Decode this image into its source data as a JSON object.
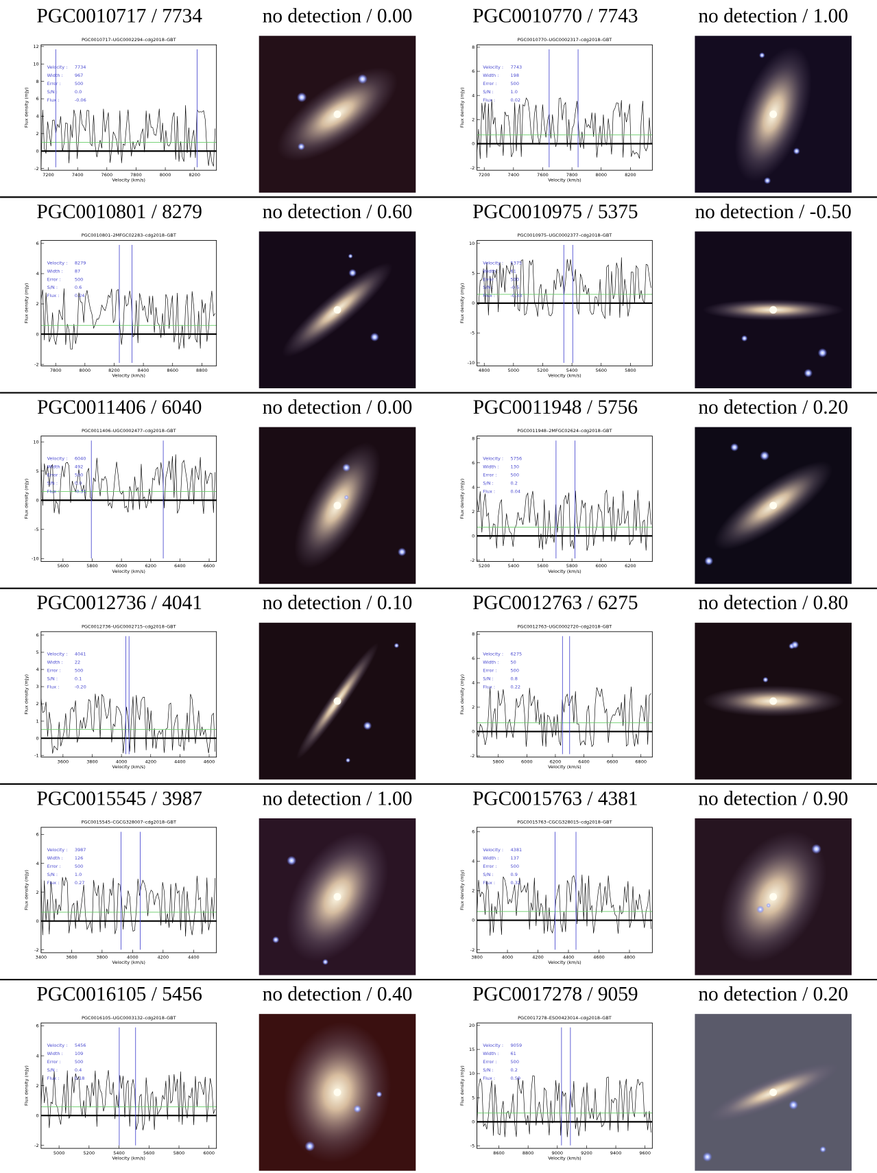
{
  "axis_labels": {
    "x": "Velocity (km/s)",
    "y": "Flux density (mJy)"
  },
  "stat_labels": [
    "Velocity :",
    "Width :",
    "Error :",
    "S/N :",
    "Flux :"
  ],
  "panels": [
    {
      "header": "PGC0010717 / 7734",
      "detection": "no detection / 0.00",
      "plot": {
        "title": "PGC0010717–UGC0002294–cdg2018–GBT",
        "xlim": [
          7150,
          8350
        ],
        "ylim": [
          -2.2,
          12.2
        ],
        "xticks": [
          7200,
          7400,
          7600,
          7800,
          8000,
          8200
        ],
        "yticks": [
          -2,
          0,
          2,
          4,
          6,
          8,
          10,
          12
        ],
        "stats": {
          "velocity": 7734,
          "width": 967,
          "error": 500,
          "sn": "0.0",
          "flux": "-0.06"
        }
      }
    },
    {
      "header": "PGC0010770 / 7743",
      "detection": "no detection / 1.00",
      "plot": {
        "title": "PGC0010770–UGC0002317–cdg2018–GBT",
        "xlim": [
          7150,
          8350
        ],
        "ylim": [
          -2.2,
          8.2
        ],
        "xticks": [
          7200,
          7400,
          7600,
          7800,
          8000,
          8200
        ],
        "yticks": [
          -2,
          0,
          2,
          4,
          6,
          8
        ],
        "stats": {
          "velocity": 7743,
          "width": 198,
          "error": 500,
          "sn": "1.0",
          "flux": "0.02"
        }
      }
    },
    {
      "header": "PGC0010801 / 8279",
      "detection": "no detection / 0.60",
      "plot": {
        "title": "PGC0010801–2MFGC02283–cdg2018–GBT",
        "xlim": [
          7700,
          8900
        ],
        "ylim": [
          -2.1,
          6.2
        ],
        "xticks": [
          7800,
          8000,
          8200,
          8400,
          8600,
          8800
        ],
        "yticks": [
          -2,
          0,
          2,
          4,
          6
        ],
        "stats": {
          "velocity": 8279,
          "width": 87,
          "error": 500,
          "sn": "0.6",
          "flux": "0.24"
        }
      }
    },
    {
      "header": "PGC0010975 / 5375",
      "detection": "no detection / -0.50",
      "plot": {
        "title": "PGC0010975–UGC0002377–cdg2018–GBT",
        "xlim": [
          4750,
          5950
        ],
        "ylim": [
          -10.5,
          10.5
        ],
        "xticks": [
          4800,
          5000,
          5200,
          5400,
          5600,
          5800
        ],
        "yticks": [
          -10,
          -5,
          0,
          5,
          10
        ],
        "stats": {
          "velocity": 5375,
          "width": 61,
          "error": 500,
          "sn": "-0.5",
          "flux": "-0.33"
        }
      }
    },
    {
      "header": "PGC0011406 / 6040",
      "detection": "no detection / 0.00",
      "plot": {
        "title": "PGC0011406–UGC0002477–cdg2018–GBT",
        "xlim": [
          5450,
          6650
        ],
        "ylim": [
          -10.5,
          11
        ],
        "xticks": [
          5600,
          5800,
          6000,
          6200,
          6400,
          6600
        ],
        "yticks": [
          -10,
          -5,
          0,
          5,
          10
        ],
        "stats": {
          "velocity": 6040,
          "width": 492,
          "error": 500,
          "sn": "0.0",
          "flux": "-0.31"
        }
      }
    },
    {
      "header": "PGC0011948 / 5756",
      "detection": "no detection / 0.20",
      "plot": {
        "title": "PGC0011948–2MFGC02624–cdg2018–GBT",
        "xlim": [
          5150,
          6350
        ],
        "ylim": [
          -2.1,
          8.2
        ],
        "xticks": [
          5200,
          5400,
          5600,
          5800,
          6000,
          6200
        ],
        "yticks": [
          -2,
          0,
          2,
          4,
          6,
          8
        ],
        "stats": {
          "velocity": 5756,
          "width": 130,
          "error": 500,
          "sn": "0.2",
          "flux": "0.04"
        }
      }
    },
    {
      "header": "PGC0012736 / 4041",
      "detection": "no detection / 0.10",
      "plot": {
        "title": "PGC0012736–UGC0002715–cdg2018–GBT",
        "xlim": [
          3450,
          4650
        ],
        "ylim": [
          -1.1,
          6.2
        ],
        "xticks": [
          3600,
          3800,
          4000,
          4200,
          4400,
          4600
        ],
        "yticks": [
          -1,
          0,
          1,
          2,
          3,
          4,
          5,
          6
        ],
        "stats": {
          "velocity": 4041,
          "width": 22,
          "error": 500,
          "sn": "0.1",
          "flux": "-0.20"
        }
      }
    },
    {
      "header": "PGC0012763 / 6275",
      "detection": "no detection / 0.80",
      "plot": {
        "title": "PGC0012763–UGC0002720–cdg2018–GBT",
        "xlim": [
          5650,
          6880
        ],
        "ylim": [
          -2.1,
          8.2
        ],
        "xticks": [
          5800,
          6000,
          6200,
          6400,
          6600,
          6800
        ],
        "yticks": [
          -2,
          0,
          2,
          4,
          6,
          8
        ],
        "stats": {
          "velocity": 6275,
          "width": 50,
          "error": 500,
          "sn": "0.8",
          "flux": "0.22"
        }
      }
    },
    {
      "header": "PGC0015545 / 3987",
      "detection": "no detection / 1.00",
      "plot": {
        "title": "PGC0015545–CGCG328007–cdg2018–GBT",
        "xlim": [
          3400,
          4550
        ],
        "ylim": [
          -2.2,
          6.5
        ],
        "xticks": [
          3400,
          3600,
          3800,
          4000,
          4200,
          4400
        ],
        "yticks": [
          -2,
          0,
          2,
          4,
          6
        ],
        "stats": {
          "velocity": 3987,
          "width": 126,
          "error": 500,
          "sn": "1.0",
          "flux": "0.27"
        }
      }
    },
    {
      "header": "PGC0015763 / 4381",
      "detection": "no detection / 0.90",
      "plot": {
        "title": "PGC0015763–CGCG328015–cdg2018–GBT",
        "xlim": [
          3800,
          4950
        ],
        "ylim": [
          -2.2,
          6.3
        ],
        "xticks": [
          3800,
          4000,
          4200,
          4400,
          4600,
          4800
        ],
        "yticks": [
          -2,
          0,
          2,
          4,
          6
        ],
        "stats": {
          "velocity": 4381,
          "width": 137,
          "error": 500,
          "sn": "0.9",
          "flux": "0.32"
        }
      }
    },
    {
      "header": "PGC0016105 / 5456",
      "detection": "no detection / 0.40",
      "plot": {
        "title": "PGC0016105–UGC0003132–cdg2018–GBT",
        "xlim": [
          4880,
          6050
        ],
        "ylim": [
          -2.2,
          6.2
        ],
        "xticks": [
          5000,
          5200,
          5400,
          5600,
          5800,
          6000
        ],
        "yticks": [
          -2,
          0,
          2,
          4,
          6
        ],
        "stats": {
          "velocity": 5456,
          "width": 109,
          "error": 500,
          "sn": "0.4",
          "flux": "0.18"
        }
      }
    },
    {
      "header": "PGC0017278 / 9059",
      "detection": "no detection / 0.20",
      "plot": {
        "title": "PGC0017278–ESO0423014–cdg2018–GBT",
        "xlim": [
          8450,
          9650
        ],
        "ylim": [
          -5.5,
          20.5
        ],
        "xticks": [
          8600,
          8800,
          9000,
          9200,
          9400,
          9600
        ],
        "yticks": [
          -5,
          0,
          5,
          10,
          15,
          20
        ],
        "stats": {
          "velocity": 9059,
          "width": 61,
          "error": 500,
          "sn": "0.2",
          "flux": "0.59"
        }
      }
    }
  ]
}
